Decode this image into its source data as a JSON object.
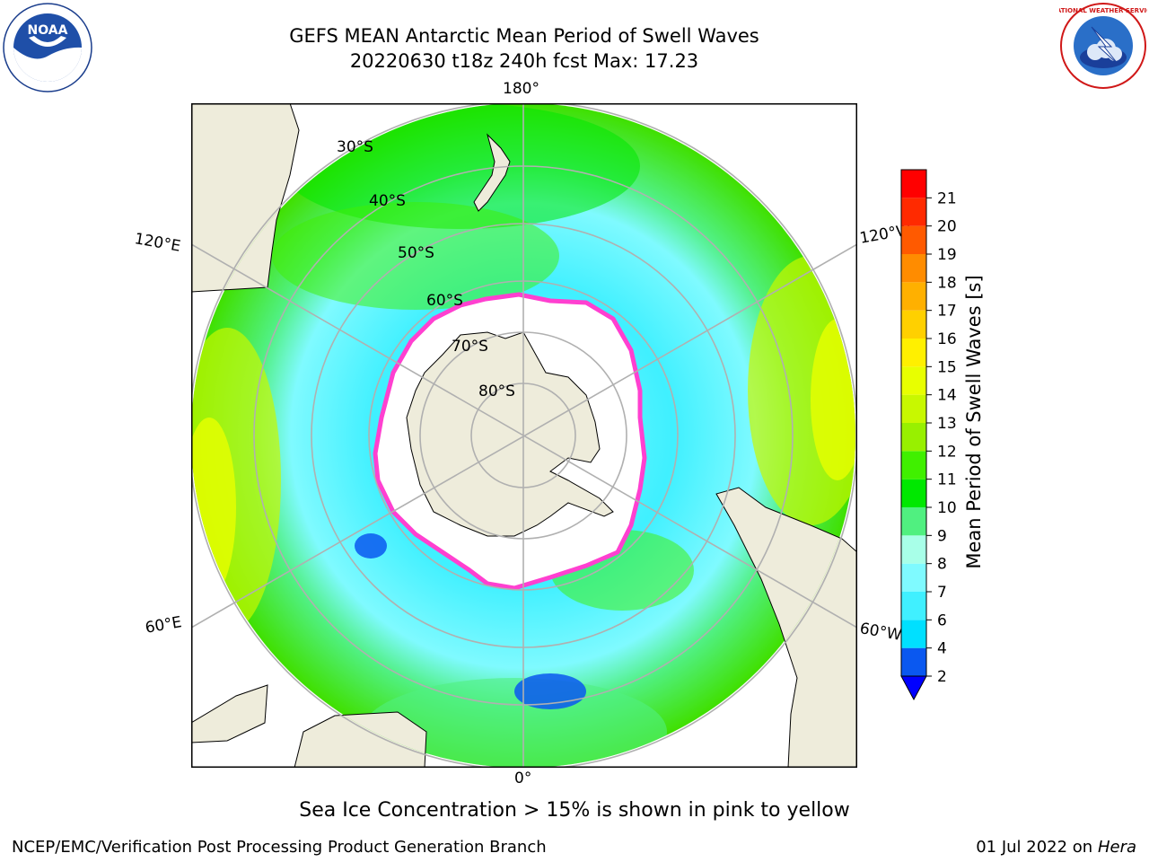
{
  "title": {
    "line1": "GEFS MEAN Antarctic Mean Period of Swell Waves",
    "line2": "20220630 t18z 240h fcst   Max: 17.23"
  },
  "map": {
    "projection": "south-polar-stereographic",
    "longitude_labels": {
      "top": "180°",
      "bottom": "0°",
      "upper_left": "120°E",
      "lower_left": "60°E",
      "upper_right": "120°W",
      "lower_right": "60°W"
    },
    "latitude_labels": [
      "30°S",
      "40°S",
      "50°S",
      "60°S",
      "70°S",
      "80°S"
    ],
    "colors": {
      "land": "#eeecdb",
      "sea_ice": "#ffffff",
      "ice_edge": "#ff40d0",
      "grid": "#b0b0b0"
    }
  },
  "colorbar": {
    "label": "Mean Period of Swell Waves [s]",
    "ticks": [
      "2",
      "4",
      "6",
      "7",
      "8",
      "9",
      "10",
      "11",
      "12",
      "13",
      "14",
      "15",
      "16",
      "17",
      "18",
      "19",
      "20",
      "21"
    ],
    "colors": [
      "#0a58f0",
      "#00e0ff",
      "#40f0ff",
      "#7ffaff",
      "#a8ffe8",
      "#50f080",
      "#00e800",
      "#40f000",
      "#98f000",
      "#c8f800",
      "#e8ff00",
      "#fff000",
      "#ffd000",
      "#ffb000",
      "#ff8c00",
      "#ff5a00",
      "#ff2a00",
      "#ff0000"
    ],
    "extend_color": "#0000ff"
  },
  "note": "Sea Ice Concentration > 15% is shown in pink to yellow",
  "footer": {
    "left": "NCEP/EMC/Verification Post Processing Product Generation Branch",
    "date": "01 Jul 2022 on ",
    "machine": "Hera"
  },
  "logos": {
    "noaa_text": "NOAA",
    "nws_text": "NATIONAL WEATHER SERVICE"
  }
}
